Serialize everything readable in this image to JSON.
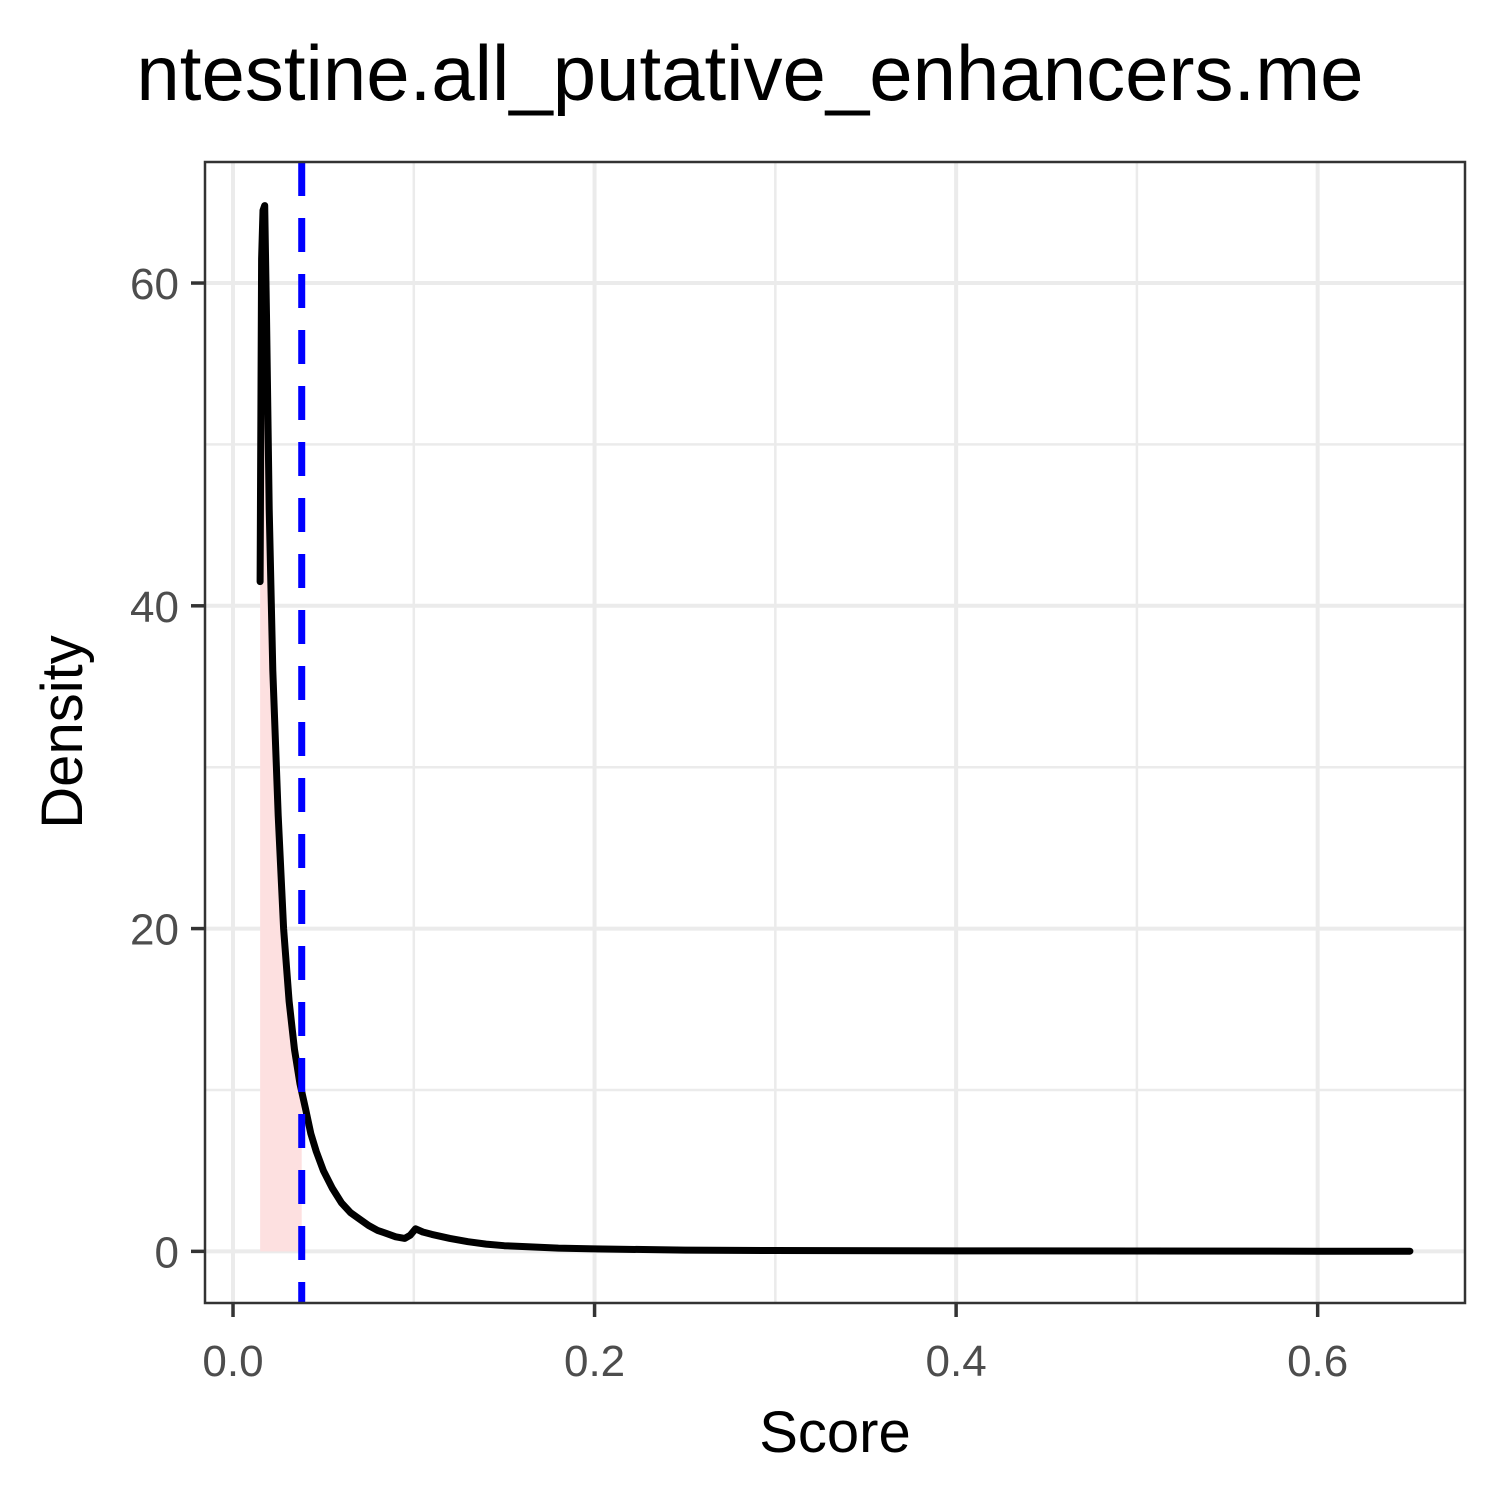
{
  "chart_data": {
    "type": "area",
    "title": "ntestine.all_putative_enhancers.me",
    "xlabel": "Score",
    "ylabel": "Density",
    "xlim": [
      -0.0155,
      0.6815
    ],
    "ylim": [
      -3.2,
      67.5
    ],
    "x_ticks": [
      {
        "value": 0.0,
        "label": "0.0"
      },
      {
        "value": 0.2,
        "label": "0.2"
      },
      {
        "value": 0.4,
        "label": "0.4"
      },
      {
        "value": 0.6,
        "label": "0.6"
      }
    ],
    "x_minor": [
      0.1,
      0.3,
      0.5
    ],
    "y_ticks": [
      {
        "value": 0,
        "label": "0"
      },
      {
        "value": 20,
        "label": "20"
      },
      {
        "value": 40,
        "label": "40"
      },
      {
        "value": 60,
        "label": "60"
      }
    ],
    "y_minor": [
      10,
      30,
      50
    ],
    "grid": true,
    "legend": "none",
    "cutoff_line": {
      "x": 0.038,
      "color": "#0000ff",
      "style": "dashed"
    },
    "fill_region": {
      "x_start": 0.015,
      "x_end": 0.038,
      "color": "#fde0e0"
    },
    "series": [
      {
        "color": "#000000",
        "x": [
          0.015,
          0.0158,
          0.0166,
          0.0175,
          0.0185,
          0.02,
          0.022,
          0.025,
          0.028,
          0.031,
          0.034,
          0.037,
          0.04,
          0.043,
          0.046,
          0.05,
          0.055,
          0.06,
          0.065,
          0.07,
          0.075,
          0.08,
          0.085,
          0.09,
          0.095,
          0.098,
          0.101,
          0.105,
          0.11,
          0.12,
          0.13,
          0.14,
          0.15,
          0.16,
          0.18,
          0.2,
          0.25,
          0.3,
          0.4,
          0.5,
          0.6,
          0.651
        ],
        "y": [
          41.5,
          61.5,
          64.5,
          64.8,
          58.0,
          46.0,
          36.0,
          27.0,
          20.0,
          15.5,
          12.5,
          10.4,
          8.9,
          7.3,
          6.2,
          5.0,
          3.9,
          3.0,
          2.4,
          2.0,
          1.6,
          1.3,
          1.1,
          0.9,
          0.8,
          1.0,
          1.4,
          1.2,
          1.05,
          0.8,
          0.6,
          0.45,
          0.35,
          0.3,
          0.2,
          0.15,
          0.08,
          0.05,
          0.03,
          0.02,
          0.01,
          0.01
        ]
      }
    ]
  },
  "colors": {
    "curve": "#000000",
    "cutoff": "#0000ff",
    "fill": "#fde0e0",
    "grid": "#ebebeb",
    "tick_text": "#4d4d4d"
  }
}
